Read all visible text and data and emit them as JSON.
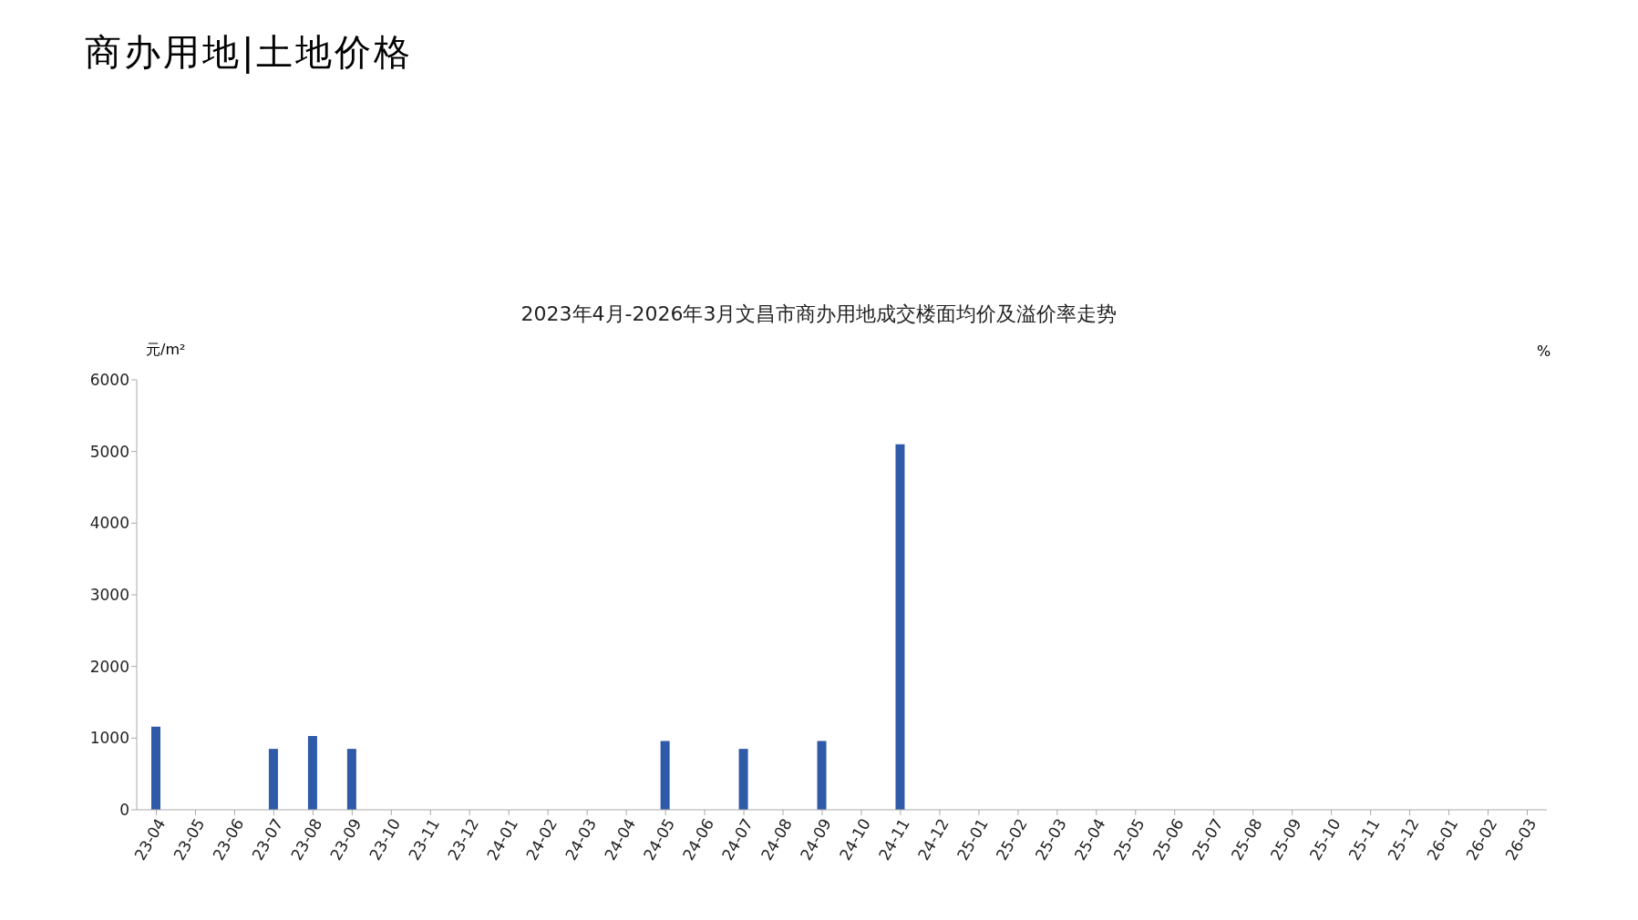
{
  "chart_data": {
    "type": "bar",
    "title": "2023年4月-2026年3月文昌市商办用地成交楼面均价及溢价率走势",
    "subtitle": "商办用地|土地价格",
    "ylabel": "元/m²",
    "y2label": "%",
    "categories": [
      "23-04",
      "23-05",
      "23-06",
      "23-07",
      "23-08",
      "23-09",
      "23-10",
      "23-11",
      "23-12",
      "24-01",
      "24-02",
      "24-03",
      "24-04",
      "24-05",
      "24-06",
      "24-07",
      "24-08",
      "24-09",
      "24-10",
      "24-11",
      "24-12",
      "25-01",
      "25-02",
      "25-03",
      "25-04",
      "25-05",
      "25-06",
      "25-07",
      "25-08",
      "25-09",
      "25-10",
      "25-11",
      "25-12",
      "26-01",
      "26-02",
      "26-03"
    ],
    "values": [
      1160,
      null,
      null,
      850,
      1030,
      850,
      null,
      null,
      null,
      null,
      null,
      null,
      null,
      960,
      null,
      850,
      null,
      960,
      null,
      5100,
      null,
      null,
      null,
      null,
      null,
      null,
      null,
      null,
      null,
      null,
      null,
      null,
      null,
      null,
      null,
      null
    ],
    "color": "#2e5aa8",
    "ylim": [
      0,
      6000
    ],
    "yticks": [
      0,
      1000,
      2000,
      3000,
      4000,
      5000,
      6000
    ]
  }
}
